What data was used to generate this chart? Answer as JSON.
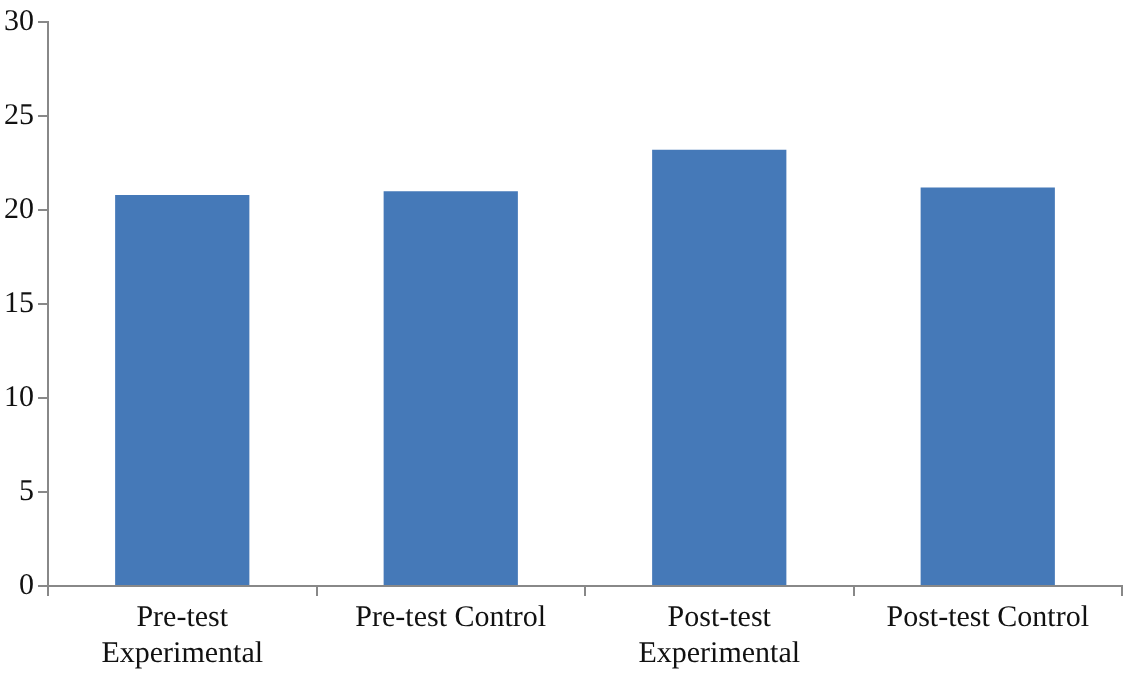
{
  "chart_data": {
    "type": "bar",
    "categories": [
      "Pre-test Experimental",
      "Pre-test Control",
      "Post-test Experimental",
      "Post-test Control"
    ],
    "values": [
      20.8,
      21.0,
      23.2,
      21.2
    ],
    "color": "#4579b8",
    "ylim": [
      0,
      30
    ],
    "yticks": [
      0,
      5,
      10,
      15,
      20,
      25,
      30
    ],
    "grid": false,
    "legend": false
  }
}
